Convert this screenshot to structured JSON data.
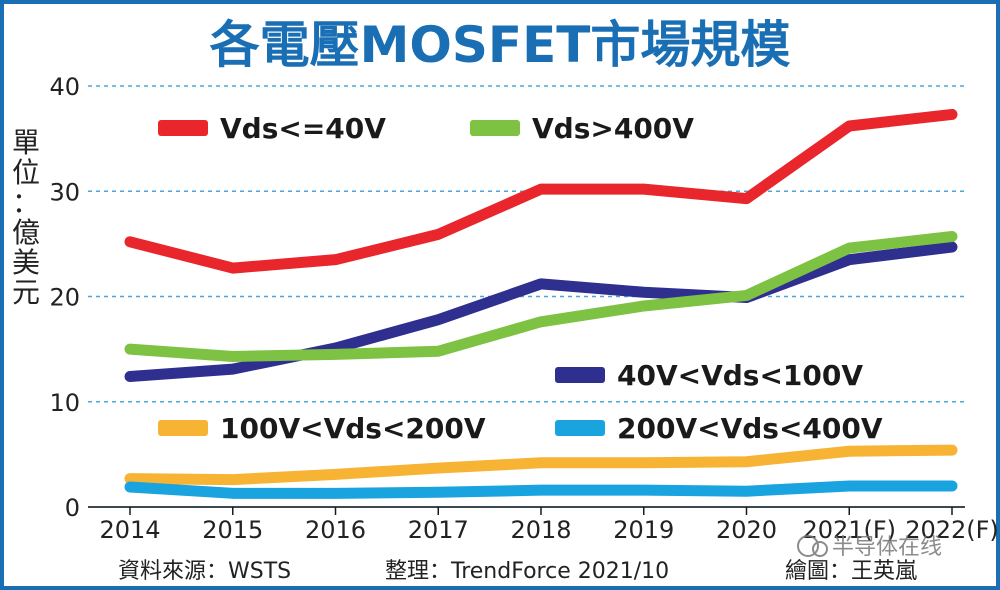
{
  "chart_data": {
    "type": "line",
    "title": "各電壓MOSFET市場規模",
    "ylabel": "單位：億美元",
    "xlabel": "",
    "categories": [
      "2014",
      "2015",
      "2016",
      "2017",
      "2018",
      "2019",
      "2020",
      "2021(F)",
      "2022(F)"
    ],
    "yticks": [
      "0",
      "10",
      "20",
      "30",
      "40"
    ],
    "ylim": [
      0,
      40
    ],
    "grid": true,
    "series": [
      {
        "name": "Vds<=40V",
        "color": "#e8262b",
        "values": [
          25.2,
          22.7,
          23.5,
          25.9,
          30.2,
          30.2,
          29.3,
          36.2,
          37.3
        ]
      },
      {
        "name": "Vds>400V",
        "color": "#7dc242",
        "values": [
          15.0,
          14.3,
          14.5,
          14.8,
          17.6,
          19.1,
          20.1,
          24.6,
          25.7
        ]
      },
      {
        "name": "40V<Vds<100V",
        "color": "#2e2f8f",
        "values": [
          12.4,
          13.1,
          15.1,
          17.8,
          21.2,
          20.4,
          19.9,
          23.5,
          24.7
        ]
      },
      {
        "name": "100V<Vds<200V",
        "color": "#f7b334",
        "values": [
          2.7,
          2.6,
          3.1,
          3.7,
          4.2,
          4.2,
          4.3,
          5.3,
          5.4
        ]
      },
      {
        "name": "200V<Vds<400V",
        "color": "#19a4e0",
        "values": [
          1.9,
          1.3,
          1.3,
          1.4,
          1.6,
          1.6,
          1.5,
          2.0,
          2.0
        ]
      }
    ]
  },
  "footer": {
    "source": "資料來源：WSTS",
    "arranged": "整理：TrendForce 2021/10",
    "drawn": "繪圖：王英嵐"
  },
  "watermark": "半导体在线",
  "colors": {
    "title": "#1a6fb4",
    "grid": "#4aa8d8",
    "frame": "#1a6fb4"
  }
}
